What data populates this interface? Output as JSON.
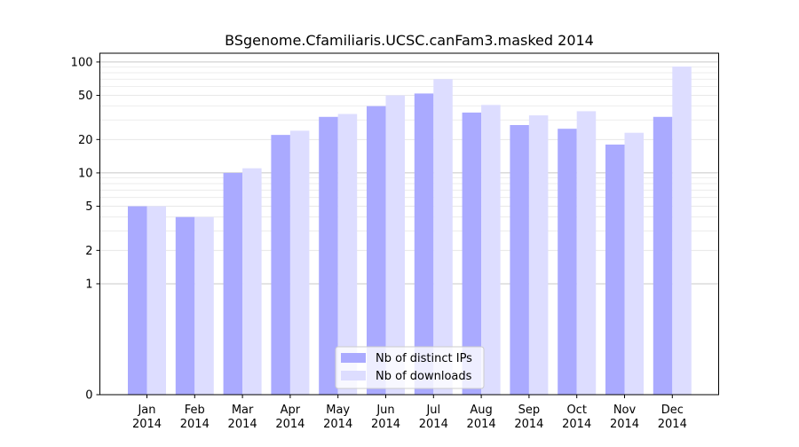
{
  "chart_data": {
    "type": "bar",
    "title": "BSgenome.Cfamiliaris.UCSC.canFam3.masked 2014",
    "xlabel": "",
    "ylabel": "",
    "y_scale": "symlog",
    "ylim": [
      0,
      120
    ],
    "y_ticks": [
      0,
      1,
      2,
      5,
      10,
      20,
      50,
      100
    ],
    "y_tick_labels": [
      "0",
      "1",
      "2",
      "5",
      "10",
      "20",
      "50",
      "100"
    ],
    "categories": [
      "Jan\n2014",
      "Feb\n2014",
      "Mar\n2014",
      "Apr\n2014",
      "May\n2014",
      "Jun\n2014",
      "Jul\n2014",
      "Aug\n2014",
      "Sep\n2014",
      "Oct\n2014",
      "Nov\n2014",
      "Dec\n2014"
    ],
    "series": [
      {
        "name": "Nb of distinct IPs",
        "color": "#aaaaff",
        "values": [
          5,
          4,
          10,
          22,
          32,
          40,
          52,
          35,
          27,
          25,
          18,
          32
        ]
      },
      {
        "name": "Nb of downloads",
        "color": "#ddddff",
        "values": [
          5,
          4,
          11,
          24,
          34,
          50,
          70,
          41,
          33,
          36,
          23,
          91
        ]
      }
    ],
    "grid": true,
    "legend_position": "lower-center"
  }
}
